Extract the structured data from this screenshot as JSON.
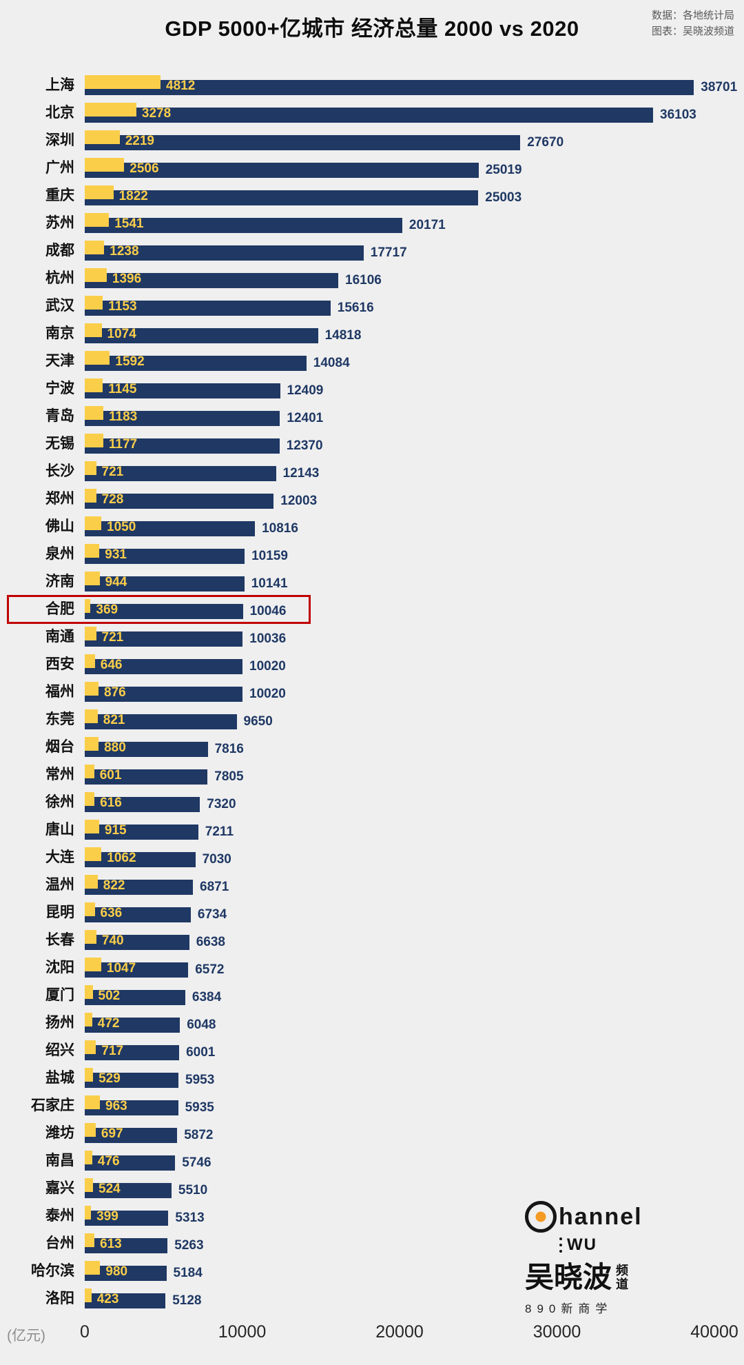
{
  "header": {
    "title": "GDP 5000+亿城市 经济总量 2000 vs 2020",
    "source1": "数据：各地统计局",
    "source2": "图表：吴晓波频道"
  },
  "chart_data": {
    "type": "bar",
    "orientation": "horizontal",
    "title": "GDP 5000+亿城市 经济总量 2000 vs 2020",
    "unit_label": "(亿元)",
    "xlim": [
      0,
      40000
    ],
    "x_ticks": [
      0,
      10000,
      20000,
      30000,
      40000
    ],
    "highlight_city": "合肥",
    "highlight_color": "#c00000",
    "categories": [
      "上海",
      "北京",
      "深圳",
      "广州",
      "重庆",
      "苏州",
      "成都",
      "杭州",
      "武汉",
      "南京",
      "天津",
      "宁波",
      "青岛",
      "无锡",
      "长沙",
      "郑州",
      "佛山",
      "泉州",
      "济南",
      "合肥",
      "南通",
      "西安",
      "福州",
      "东莞",
      "烟台",
      "常州",
      "徐州",
      "唐山",
      "大连",
      "温州",
      "昆明",
      "长春",
      "沈阳",
      "厦门",
      "扬州",
      "绍兴",
      "盐城",
      "石家庄",
      "潍坊",
      "南昌",
      "嘉兴",
      "泰州",
      "台州",
      "哈尔滨",
      "洛阳"
    ],
    "series": [
      {
        "name": "2000",
        "color": "#fbce4a",
        "values": [
          4812,
          3278,
          2219,
          2506,
          1822,
          1541,
          1238,
          1396,
          1153,
          1074,
          1592,
          1145,
          1183,
          1177,
          721,
          728,
          1050,
          931,
          944,
          369,
          721,
          646,
          876,
          821,
          880,
          601,
          616,
          915,
          1062,
          822,
          636,
          740,
          1047,
          502,
          472,
          717,
          529,
          963,
          697,
          476,
          524,
          399,
          613,
          980,
          423
        ]
      },
      {
        "name": "2020",
        "color": "#1f3864",
        "values": [
          38701,
          36103,
          27670,
          25019,
          25003,
          20171,
          17717,
          16106,
          15616,
          14818,
          14084,
          12409,
          12401,
          12370,
          12143,
          12003,
          10816,
          10159,
          10141,
          10046,
          10036,
          10020,
          10020,
          9650,
          7816,
          7805,
          7320,
          7211,
          7030,
          6871,
          6734,
          6638,
          6572,
          6384,
          6048,
          6001,
          5953,
          5935,
          5872,
          5746,
          5510,
          5313,
          5263,
          5184,
          5128
        ]
      }
    ]
  },
  "logo": {
    "line1": "hannel",
    "wu": "WU",
    "brand_main": "吴晓波",
    "stack1": "频",
    "stack2": "道",
    "tagline": "890新商学"
  }
}
